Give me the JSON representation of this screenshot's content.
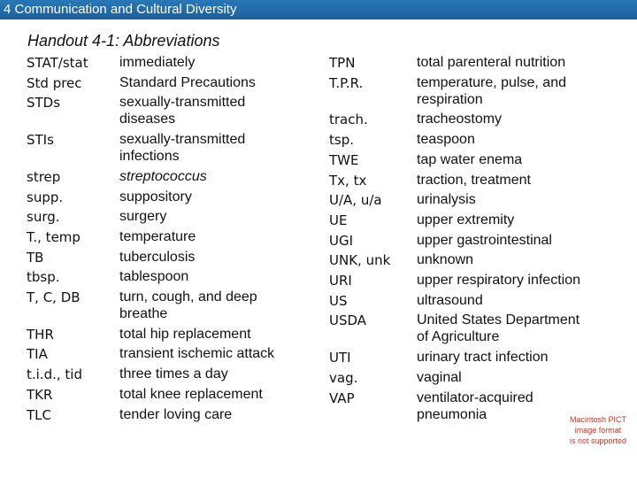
{
  "header": {
    "title": "4 Communication and Cultural Diversity"
  },
  "handout_title": "Handout 4-1: Abbreviations",
  "columns": [
    {
      "entries": [
        {
          "abbr": "STAT/stat",
          "meaning": [
            "immediately"
          ]
        },
        {
          "abbr": "Std prec",
          "meaning": [
            "Standard Precautions"
          ]
        },
        {
          "abbr": "STDs",
          "meaning": [
            "sexually-transmitted",
            "diseases"
          ]
        },
        {
          "abbr": "STIs",
          "meaning": [
            "sexually-transmitted",
            "infections"
          ]
        },
        {
          "abbr": "strep",
          "meaning": [
            "streptococcus"
          ],
          "italic": true
        },
        {
          "abbr": "supp.",
          "meaning": [
            "suppository"
          ]
        },
        {
          "abbr": "surg.",
          "meaning": [
            "surgery"
          ]
        },
        {
          "abbr": "T., temp",
          "meaning": [
            "temperature"
          ]
        },
        {
          "abbr": "TB",
          "meaning": [
            "tuberculosis"
          ]
        },
        {
          "abbr": "tbsp.",
          "meaning": [
            "tablespoon"
          ]
        },
        {
          "abbr": "T, C, DB",
          "meaning": [
            "turn, cough, and deep",
            "breathe"
          ]
        },
        {
          "abbr": "THR",
          "meaning": [
            "total hip replacement"
          ]
        },
        {
          "abbr": "TIA",
          "meaning": [
            "transient ischemic attack"
          ]
        },
        {
          "abbr": "t.i.d., tid",
          "meaning": [
            "three times a day"
          ]
        },
        {
          "abbr": "TKR",
          "meaning": [
            "total knee replacement"
          ]
        },
        {
          "abbr": "TLC",
          "meaning": [
            "tender loving care"
          ]
        }
      ]
    },
    {
      "entries": [
        {
          "abbr": "TPN",
          "meaning": [
            "total parenteral nutrition"
          ]
        },
        {
          "abbr": "T.P.R.",
          "meaning": [
            "temperature, pulse, and",
            "respiration"
          ]
        },
        {
          "abbr": "trach.",
          "meaning": [
            "tracheostomy"
          ]
        },
        {
          "abbr": "tsp.",
          "meaning": [
            "teaspoon"
          ]
        },
        {
          "abbr": "TWE",
          "meaning": [
            "tap water enema"
          ]
        },
        {
          "abbr": "Tx, tx",
          "meaning": [
            "traction, treatment"
          ]
        },
        {
          "abbr": "U/A, u/a",
          "meaning": [
            "urinalysis"
          ]
        },
        {
          "abbr": "UE",
          "meaning": [
            "upper extremity"
          ]
        },
        {
          "abbr": "UGI",
          "meaning": [
            "upper gastrointestinal"
          ]
        },
        {
          "abbr": "UNK, unk",
          "meaning": [
            "unknown"
          ]
        },
        {
          "abbr": "URI",
          "meaning": [
            "upper respiratory infection"
          ]
        },
        {
          "abbr": "US",
          "meaning": [
            "ultrasound"
          ]
        },
        {
          "abbr": "USDA",
          "meaning": [
            "United States Department",
            "of Agriculture"
          ]
        },
        {
          "abbr": "UTI",
          "meaning": [
            "urinary tract infection"
          ]
        },
        {
          "abbr": "vag.",
          "meaning": [
            "vaginal"
          ]
        },
        {
          "abbr": "VAP",
          "meaning": [
            "ventilator-acquired",
            "pneumonia"
          ]
        }
      ]
    }
  ],
  "image_notice": [
    "Macintosh PICT",
    "image format",
    "is not supported"
  ]
}
